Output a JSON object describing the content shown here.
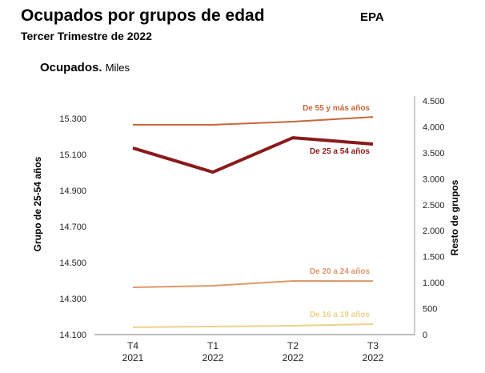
{
  "header": {
    "title": "Ocupados por grupos de edad",
    "source": "EPA",
    "subtitle": "Tercer Trimestre de 2022"
  },
  "chart_data": {
    "type": "line",
    "title": "Ocupados.",
    "unit": "Miles",
    "categories": [
      [
        "T4",
        "2021"
      ],
      [
        "T1",
        "2022"
      ],
      [
        "T2",
        "2022"
      ],
      [
        "T3",
        "2022"
      ]
    ],
    "y_left": {
      "label": "Grupo de 25-54 años",
      "range": [
        14100,
        15500
      ],
      "ticks": [
        "14.100",
        "14.300",
        "14.500",
        "14.700",
        "14.900",
        "15.100",
        "15.300"
      ],
      "tick_values": [
        14100,
        14300,
        14500,
        14700,
        14900,
        15100,
        15300
      ]
    },
    "y_right": {
      "label": "Resto de grupos",
      "range": [
        0,
        4500
      ],
      "ticks": [
        "0",
        "500",
        "1.000",
        "1.500",
        "2.000",
        "2.500",
        "3.000",
        "3.500",
        "4.000",
        "4.500"
      ],
      "tick_values": [
        0,
        500,
        1000,
        1500,
        2000,
        2500,
        3000,
        3500,
        4000,
        4500
      ]
    },
    "series": [
      {
        "name": "De 55 y más años",
        "axis": "right",
        "color": "#c8663a",
        "width": 2,
        "values": [
          4040,
          4040,
          4100,
          4190
        ]
      },
      {
        "name": "De 25 a 54 años",
        "axis": "left",
        "color": "#8b1a1a",
        "width": 4,
        "values": [
          15136,
          15002,
          15193,
          15158
        ]
      },
      {
        "name": "De 20 a 24 años",
        "axis": "right",
        "color": "#e0986a",
        "width": 2,
        "values": [
          910,
          940,
          1033,
          1030
        ]
      },
      {
        "name": "De 16 a 19 años",
        "axis": "right",
        "color": "#f0d08a",
        "width": 2,
        "values": [
          140,
          155,
          170,
          200
        ]
      }
    ],
    "grid": false,
    "legend": "inline labels"
  }
}
